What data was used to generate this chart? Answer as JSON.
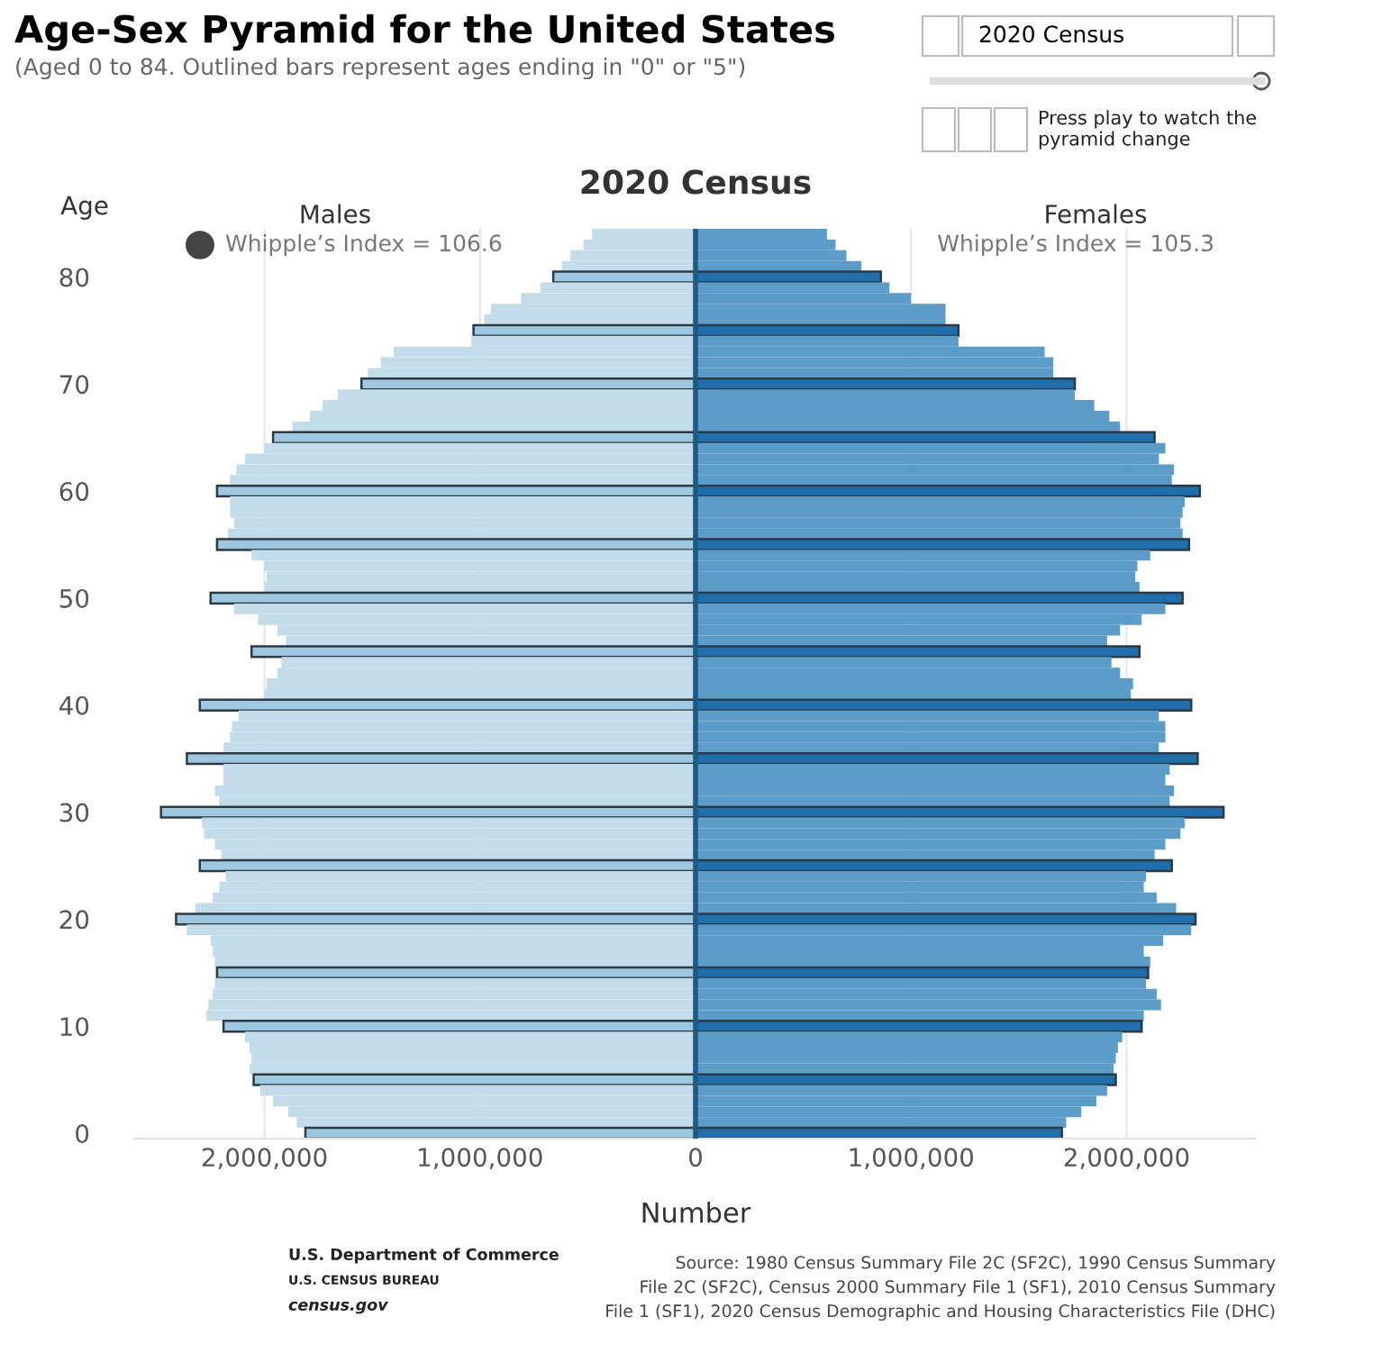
{
  "chart_data": {
    "type": "bar",
    "orientation": "horizontal",
    "stacked": true,
    "title": "2020 Census",
    "xlabel": "Number",
    "ylabel": "Age",
    "categories": [
      null,
      null,
      null,
      null,
      "80",
      null,
      null,
      null,
      null,
      null,
      null,
      null,
      null,
      null,
      "70",
      null,
      null,
      null,
      null,
      null,
      null,
      null,
      null,
      null,
      "60",
      null,
      null,
      null,
      null,
      null,
      null,
      null,
      null,
      null,
      "50",
      null,
      null,
      null,
      null,
      null,
      null,
      null,
      null,
      null,
      "40",
      null,
      null,
      null,
      null,
      null,
      null,
      null,
      null,
      null,
      "30",
      null,
      null,
      null,
      null,
      null,
      null,
      null,
      null,
      null,
      "20",
      null,
      null,
      null,
      null,
      null,
      null,
      null,
      null,
      null,
      "10",
      null,
      null,
      null,
      null,
      null,
      null,
      null,
      null,
      null,
      "0"
    ],
    "series": [
      {
        "color": "#c3dcea",
        "colors": [
          "#c3dcea",
          "#c3dcea",
          "#c3dcea",
          "#c3dcea",
          "#9dc8e0",
          "#c3dcea",
          "#c3dcea",
          "#c3dcea",
          "#c3dcea",
          "#9dc8e0",
          "#c3dcea",
          "#c3dcea",
          "#c3dcea",
          "#c3dcea",
          "#9dc8e0",
          "#c3dcea",
          "#c3dcea",
          "#c3dcea",
          "#c3dcea",
          "#9dc8e0",
          "#c3dcea",
          "#c3dcea",
          "#c3dcea",
          "#c3dcea",
          "#9dc8e0",
          "#c3dcea",
          "#c3dcea",
          "#c3dcea",
          "#c3dcea",
          "#9dc8e0",
          "#c3dcea",
          "#c3dcea",
          "#c3dcea",
          "#c3dcea",
          "#9dc8e0",
          "#c3dcea",
          "#c3dcea",
          "#c3dcea",
          "#c3dcea",
          "#9dc8e0",
          "#c3dcea",
          "#c3dcea",
          "#c3dcea",
          "#c3dcea",
          "#9dc8e0",
          "#c3dcea",
          "#c3dcea",
          "#c3dcea",
          "#c3dcea",
          "#9dc8e0",
          "#c3dcea",
          "#c3dcea",
          "#c3dcea",
          "#c3dcea",
          "#9dc8e0",
          "#c3dcea",
          "#c3dcea",
          "#c3dcea",
          "#c3dcea",
          "#9dc8e0",
          "#c3dcea",
          "#c3dcea",
          "#c3dcea",
          "#c3dcea",
          "#9dc8e0",
          "#c3dcea",
          "#c3dcea",
          "#c3dcea",
          "#c3dcea",
          "#9dc8e0",
          "#c3dcea",
          "#c3dcea",
          "#c3dcea",
          "#c3dcea",
          "#9dc8e0",
          "#c3dcea",
          "#c3dcea",
          "#c3dcea",
          "#c3dcea",
          "#9dc8e0",
          "#c3dcea",
          "#c3dcea",
          "#c3dcea",
          "#c3dcea",
          "#9dc8e0"
        ],
        "values": [
          -480000,
          -520000,
          -580000,
          -620000,
          -660000,
          -720000,
          -810000,
          -950000,
          -980000,
          -1030000,
          -1040000,
          -1400000,
          -1460000,
          -1520000,
          -1550000,
          -1660000,
          -1730000,
          -1790000,
          -1870000,
          -1960000,
          -2000000,
          -2090000,
          -2130000,
          -2160000,
          -2220000,
          -2160000,
          -2160000,
          -2140000,
          -2170000,
          -2220000,
          -2060000,
          -2000000,
          -1990000,
          -2000000,
          -2250000,
          -2140000,
          -2030000,
          -1940000,
          -1900000,
          -2060000,
          -1920000,
          -1940000,
          -1990000,
          -2000000,
          -2300000,
          -2120000,
          -2150000,
          -2160000,
          -2190000,
          -2360000,
          -2190000,
          -2190000,
          -2230000,
          -2210000,
          -2480000,
          -2290000,
          -2280000,
          -2230000,
          -2200000,
          -2300000,
          -2180000,
          -2210000,
          -2240000,
          -2320000,
          -2410000,
          -2360000,
          -2250000,
          -2240000,
          -2230000,
          -2220000,
          -2230000,
          -2240000,
          -2260000,
          -2270000,
          -2190000,
          -2090000,
          -2070000,
          -2060000,
          -2070000,
          -2050000,
          -2020000,
          -1960000,
          -1890000,
          -1850000,
          -1810000
        ]
      },
      {
        "color": "#5b9dc8",
        "colors": [
          "#5b9dc8",
          "#5b9dc8",
          "#5b9dc8",
          "#5b9dc8",
          "#1e6fac",
          "#5b9dc8",
          "#5b9dc8",
          "#5b9dc8",
          "#5b9dc8",
          "#1e6fac",
          "#5b9dc8",
          "#5b9dc8",
          "#5b9dc8",
          "#5b9dc8",
          "#1e6fac",
          "#5b9dc8",
          "#5b9dc8",
          "#5b9dc8",
          "#5b9dc8",
          "#1e6fac",
          "#5b9dc8",
          "#5b9dc8",
          "#5b9dc8",
          "#5b9dc8",
          "#1e6fac",
          "#5b9dc8",
          "#5b9dc8",
          "#5b9dc8",
          "#5b9dc8",
          "#1e6fac",
          "#5b9dc8",
          "#5b9dc8",
          "#5b9dc8",
          "#5b9dc8",
          "#1e6fac",
          "#5b9dc8",
          "#5b9dc8",
          "#5b9dc8",
          "#5b9dc8",
          "#1e6fac",
          "#5b9dc8",
          "#5b9dc8",
          "#5b9dc8",
          "#5b9dc8",
          "#1e6fac",
          "#5b9dc8",
          "#5b9dc8",
          "#5b9dc8",
          "#5b9dc8",
          "#1e6fac",
          "#5b9dc8",
          "#5b9dc8",
          "#5b9dc8",
          "#5b9dc8",
          "#1e6fac",
          "#5b9dc8",
          "#5b9dc8",
          "#5b9dc8",
          "#5b9dc8",
          "#1e6fac",
          "#5b9dc8",
          "#5b9dc8",
          "#5b9dc8",
          "#5b9dc8",
          "#1e6fac",
          "#5b9dc8",
          "#5b9dc8",
          "#5b9dc8",
          "#5b9dc8",
          "#1e6fac",
          "#5b9dc8",
          "#5b9dc8",
          "#5b9dc8",
          "#5b9dc8",
          "#1e6fac",
          "#5b9dc8",
          "#5b9dc8",
          "#5b9dc8",
          "#5b9dc8",
          "#1e6fac",
          "#5b9dc8",
          "#5b9dc8",
          "#5b9dc8",
          "#5b9dc8",
          "#1e6fac"
        ],
        "values": [
          610000,
          650000,
          700000,
          770000,
          860000,
          900000,
          1000000,
          1160000,
          1160000,
          1220000,
          1220000,
          1620000,
          1660000,
          1660000,
          1760000,
          1760000,
          1850000,
          1920000,
          1970000,
          2130000,
          2180000,
          2150000,
          2220000,
          2210000,
          2340000,
          2270000,
          2260000,
          2250000,
          2260000,
          2290000,
          2110000,
          2050000,
          2040000,
          2060000,
          2260000,
          2180000,
          2070000,
          1970000,
          1910000,
          2060000,
          1930000,
          1970000,
          2030000,
          2020000,
          2300000,
          2150000,
          2180000,
          2180000,
          2150000,
          2330000,
          2200000,
          2180000,
          2220000,
          2200000,
          2450000,
          2270000,
          2250000,
          2180000,
          2130000,
          2210000,
          2090000,
          2080000,
          2140000,
          2230000,
          2320000,
          2300000,
          2170000,
          2080000,
          2110000,
          2100000,
          2090000,
          2140000,
          2160000,
          2080000,
          2070000,
          1980000,
          1960000,
          1950000,
          1940000,
          1950000,
          1910000,
          1860000,
          1790000,
          1720000,
          1700000
        ]
      }
    ],
    "xlim": [
      -2600000,
      2600000
    ],
    "xticks": [
      {
        "value": -2000000,
        "label": "2,000,000"
      },
      {
        "value": -1000000,
        "label": "1,000,000"
      },
      0,
      {
        "value": 1000000,
        "label": "1,000,000"
      },
      {
        "value": 2000000,
        "label": "2,000,000"
      }
    ],
    "ref_lines": [
      {
        "axis": "x",
        "value": 0,
        "label": null,
        "color": "#1f5a85"
      }
    ],
    "grid": "x",
    "legend": false,
    "annotations": [
      "Age-Sex Pyramid for the United States",
      "(Aged 0 to 84. Outlined bars represent ages ending in \"0\" or \"5\")",
      "Males",
      "Females",
      "Whipple’s Index = 106.6",
      "Whipple’s Index = 105.3",
      "2020 Census",
      "Press play to watch the\npyramid change",
      "U.S. Department of Commerce",
      "U.S. CENSUS BUREAU",
      "census.gov",
      "Source: 1980 Census Summary File 2C (SF2C), 1990 Census Summary\nFile 2C (SF2C), Census 2000 Summary File 1 (SF1), 2010 Census Summary\nFile 1 (SF1), 2020 Census Demographic and Housing Characteristics File (DHC)"
    ]
  }
}
